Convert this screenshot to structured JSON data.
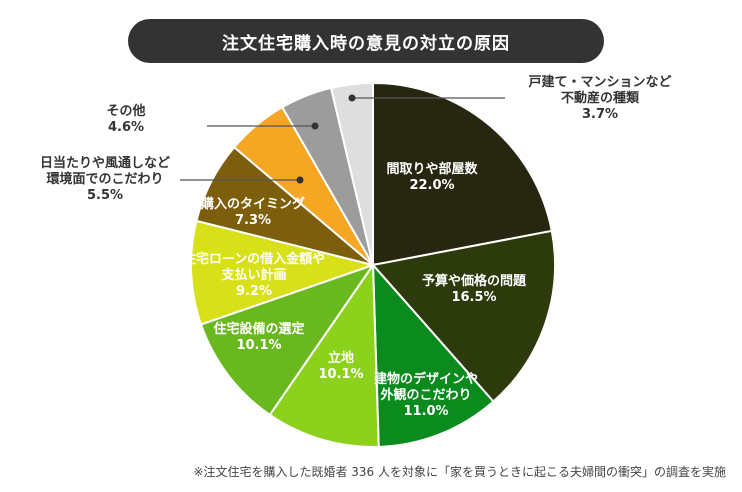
{
  "chart_data": {
    "type": "pie",
    "title": "注文住宅購入時の意見の対立の原因",
    "unit": "%",
    "slices": [
      {
        "label": "間取りや部屋数",
        "value": 22.0,
        "value_text": "22.0%",
        "color": "#272711"
      },
      {
        "label": "予算や価格の問題",
        "value": 16.5,
        "value_text": "16.5%",
        "color": "#2c3a0c"
      },
      {
        "label": "建物のデザインや外観のこだわり",
        "value": 11.0,
        "value_text": "11.0%",
        "color": "#0b8a1d"
      },
      {
        "label": "立地",
        "value": 10.1,
        "value_text": "10.1%",
        "color": "#8cd21c"
      },
      {
        "label": "住宅設備の選定",
        "value": 10.1,
        "value_text": "10.1%",
        "color": "#68b81e"
      },
      {
        "label": "住宅ローンの借入金額や支払い計画",
        "value": 9.2,
        "value_text": "9.2%",
        "color": "#d8e01a"
      },
      {
        "label": "購入のタイミング",
        "value": 7.3,
        "value_text": "7.3%",
        "color": "#7c5e0d"
      },
      {
        "label": "日当たりや風通しなど環境面でのこだわり",
        "value": 5.5,
        "value_text": "5.5%",
        "color": "#f5a623"
      },
      {
        "label": "その他",
        "value": 4.6,
        "value_text": "4.6%",
        "color": "#9c9c9c"
      },
      {
        "label": "戸建て・マンションなど不動産の種類",
        "value": 3.7,
        "value_text": "3.7%",
        "color": "#dedede"
      }
    ]
  },
  "labels": {
    "s0": {
      "lines": [
        "間取りや部屋数"
      ],
      "value": "22.0%"
    },
    "s1": {
      "lines": [
        "予算や価格の問題"
      ],
      "value": "16.5%"
    },
    "s2": {
      "lines": [
        "建物のデザインや",
        "外観のこだわり"
      ],
      "value": "11.0%"
    },
    "s3": {
      "lines": [
        "立地"
      ],
      "value": "10.1%"
    },
    "s4": {
      "lines": [
        "住宅設備の選定"
      ],
      "value": "10.1%"
    },
    "s5": {
      "lines": [
        "住宅ローンの借入金額や",
        "支払い計画"
      ],
      "value": "9.2%"
    },
    "s6": {
      "lines": [
        "購入のタイミング"
      ],
      "value": "7.3%"
    },
    "s7": {
      "lines": [
        "日当たりや風通しなど",
        "環境面でのこだわり"
      ],
      "value": "5.5%"
    },
    "s8": {
      "lines": [
        "その他"
      ],
      "value": "4.6%"
    },
    "s9": {
      "lines": [
        "戸建て・マンションなど",
        "不動産の種類"
      ],
      "value": "3.7%"
    }
  },
  "footnote": "※注文住宅を購入した既婚者 336 人を対象に「家を買うときに起こる夫婦間の衝突」の調査を実施"
}
